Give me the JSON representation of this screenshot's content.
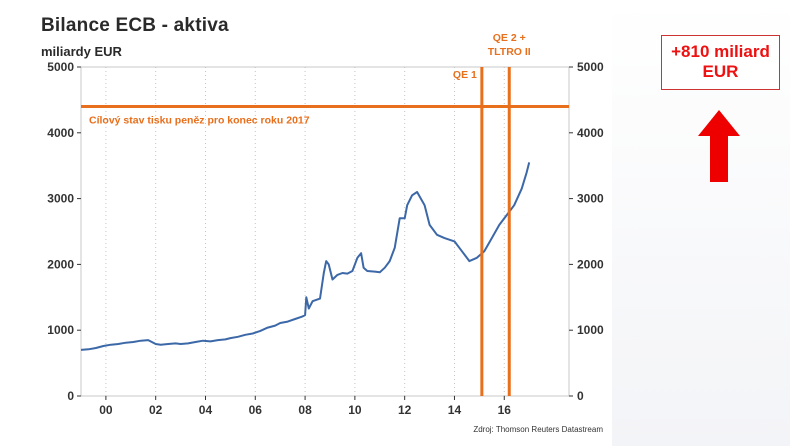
{
  "header": {
    "title": "Bilance ECB - aktiva",
    "subtitle": "miliardy EUR"
  },
  "callout": {
    "line1": "+810 miliard",
    "line2": "EUR",
    "color": "#ee1111",
    "arrow_icon": "arrow-up-icon"
  },
  "chart_data": {
    "type": "line",
    "title": "Bilance ECB - aktiva",
    "ylabel": "miliardy EUR",
    "xlabel": "",
    "ylim": [
      0,
      5000
    ],
    "xlim": [
      1999,
      2018.6
    ],
    "yticks": [
      0,
      1000,
      2000,
      3000,
      4000,
      5000
    ],
    "ytick_labels": [
      "0",
      "1000",
      "2000",
      "3000",
      "4000",
      "5000"
    ],
    "xticks": [
      2000,
      2002,
      2004,
      2006,
      2008,
      2010,
      2012,
      2014,
      2016
    ],
    "xtick_labels": [
      "00",
      "02",
      "04",
      "06",
      "08",
      "10",
      "12",
      "14",
      "16"
    ],
    "grid": "vertical dotted",
    "series": [
      {
        "color": "#3c68a8",
        "x": [
          1999.0,
          1999.3,
          1999.6,
          1999.9,
          2000.2,
          2000.5,
          2000.8,
          2001.1,
          2001.4,
          2001.7,
          2002.0,
          2002.2,
          2002.5,
          2002.8,
          2003.0,
          2003.3,
          2003.6,
          2003.9,
          2004.2,
          2004.5,
          2004.8,
          2005.0,
          2005.3,
          2005.6,
          2005.9,
          2006.2,
          2006.5,
          2006.8,
          2007.0,
          2007.3,
          2007.6,
          2007.9,
          2008.0,
          2008.05,
          2008.15,
          2008.3,
          2008.6,
          2008.75,
          2008.85,
          2008.95,
          2009.1,
          2009.3,
          2009.5,
          2009.7,
          2009.9,
          2010.1,
          2010.25,
          2010.35,
          2010.5,
          2010.8,
          2011.0,
          2011.2,
          2011.4,
          2011.6,
          2011.8,
          2012.0,
          2012.1,
          2012.3,
          2012.5,
          2012.8,
          2013.0,
          2013.3,
          2013.6,
          2014.0,
          2014.3,
          2014.6,
          2014.9,
          2015.2,
          2015.5,
          2015.8,
          2016.1,
          2016.4,
          2016.7,
          2016.9,
          2017.0
        ],
        "values": [
          700,
          710,
          730,
          760,
          780,
          790,
          810,
          820,
          840,
          850,
          790,
          780,
          790,
          800,
          790,
          800,
          820,
          840,
          830,
          850,
          860,
          880,
          900,
          930,
          950,
          990,
          1040,
          1070,
          1110,
          1130,
          1170,
          1210,
          1230,
          1500,
          1330,
          1440,
          1480,
          1870,
          2050,
          2000,
          1770,
          1840,
          1870,
          1860,
          1900,
          2100,
          2170,
          1950,
          1900,
          1890,
          1880,
          1950,
          2050,
          2250,
          2700,
          2700,
          2900,
          3050,
          3100,
          2900,
          2600,
          2450,
          2400,
          2350,
          2200,
          2050,
          2100,
          2200,
          2400,
          2600,
          2750,
          2900,
          3150,
          3400,
          3550
        ]
      }
    ],
    "annotations": [
      {
        "type": "hline",
        "y": 4400,
        "label": "Cílový stav tisku peněz pro konec roku 2017",
        "color": "#e86f1c"
      },
      {
        "type": "vline",
        "x": 2015.1,
        "label": "QE 1",
        "color": "#e86f1c"
      },
      {
        "type": "vline",
        "x": 2016.2,
        "label": "QE 2 +\nTLTRO II",
        "color": "#e86f1c"
      }
    ],
    "source": "Zdroj: Thomson Reuters Datastream"
  }
}
